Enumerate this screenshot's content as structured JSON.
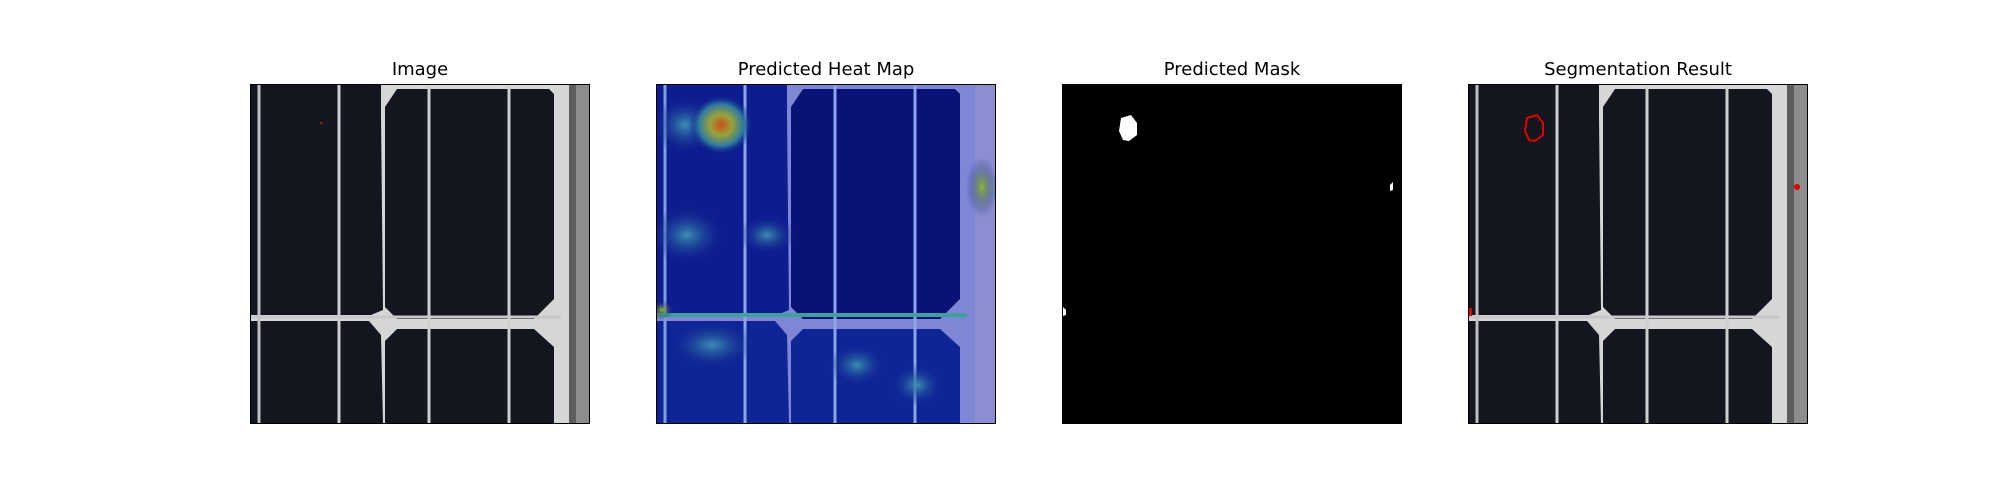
{
  "figure": {
    "panels": [
      {
        "title": "Image",
        "content": "solar-cell-photo"
      },
      {
        "title": "Predicted Heat Map",
        "content": "heat-map-overlay"
      },
      {
        "title": "Predicted Mask",
        "content": "binary-mask"
      },
      {
        "title": "Segmentation Result",
        "content": "contour-overlay"
      }
    ]
  },
  "colors": {
    "cell_dark": "#12151f",
    "busbar": "#c9c9c9",
    "gap_gray": "#d8d8d8",
    "heat_blue": "#0c1a8c",
    "heat_hot": "#c8501a",
    "mask_white": "#ffffff",
    "mask_black": "#000000",
    "contour_red": "#e00000"
  }
}
